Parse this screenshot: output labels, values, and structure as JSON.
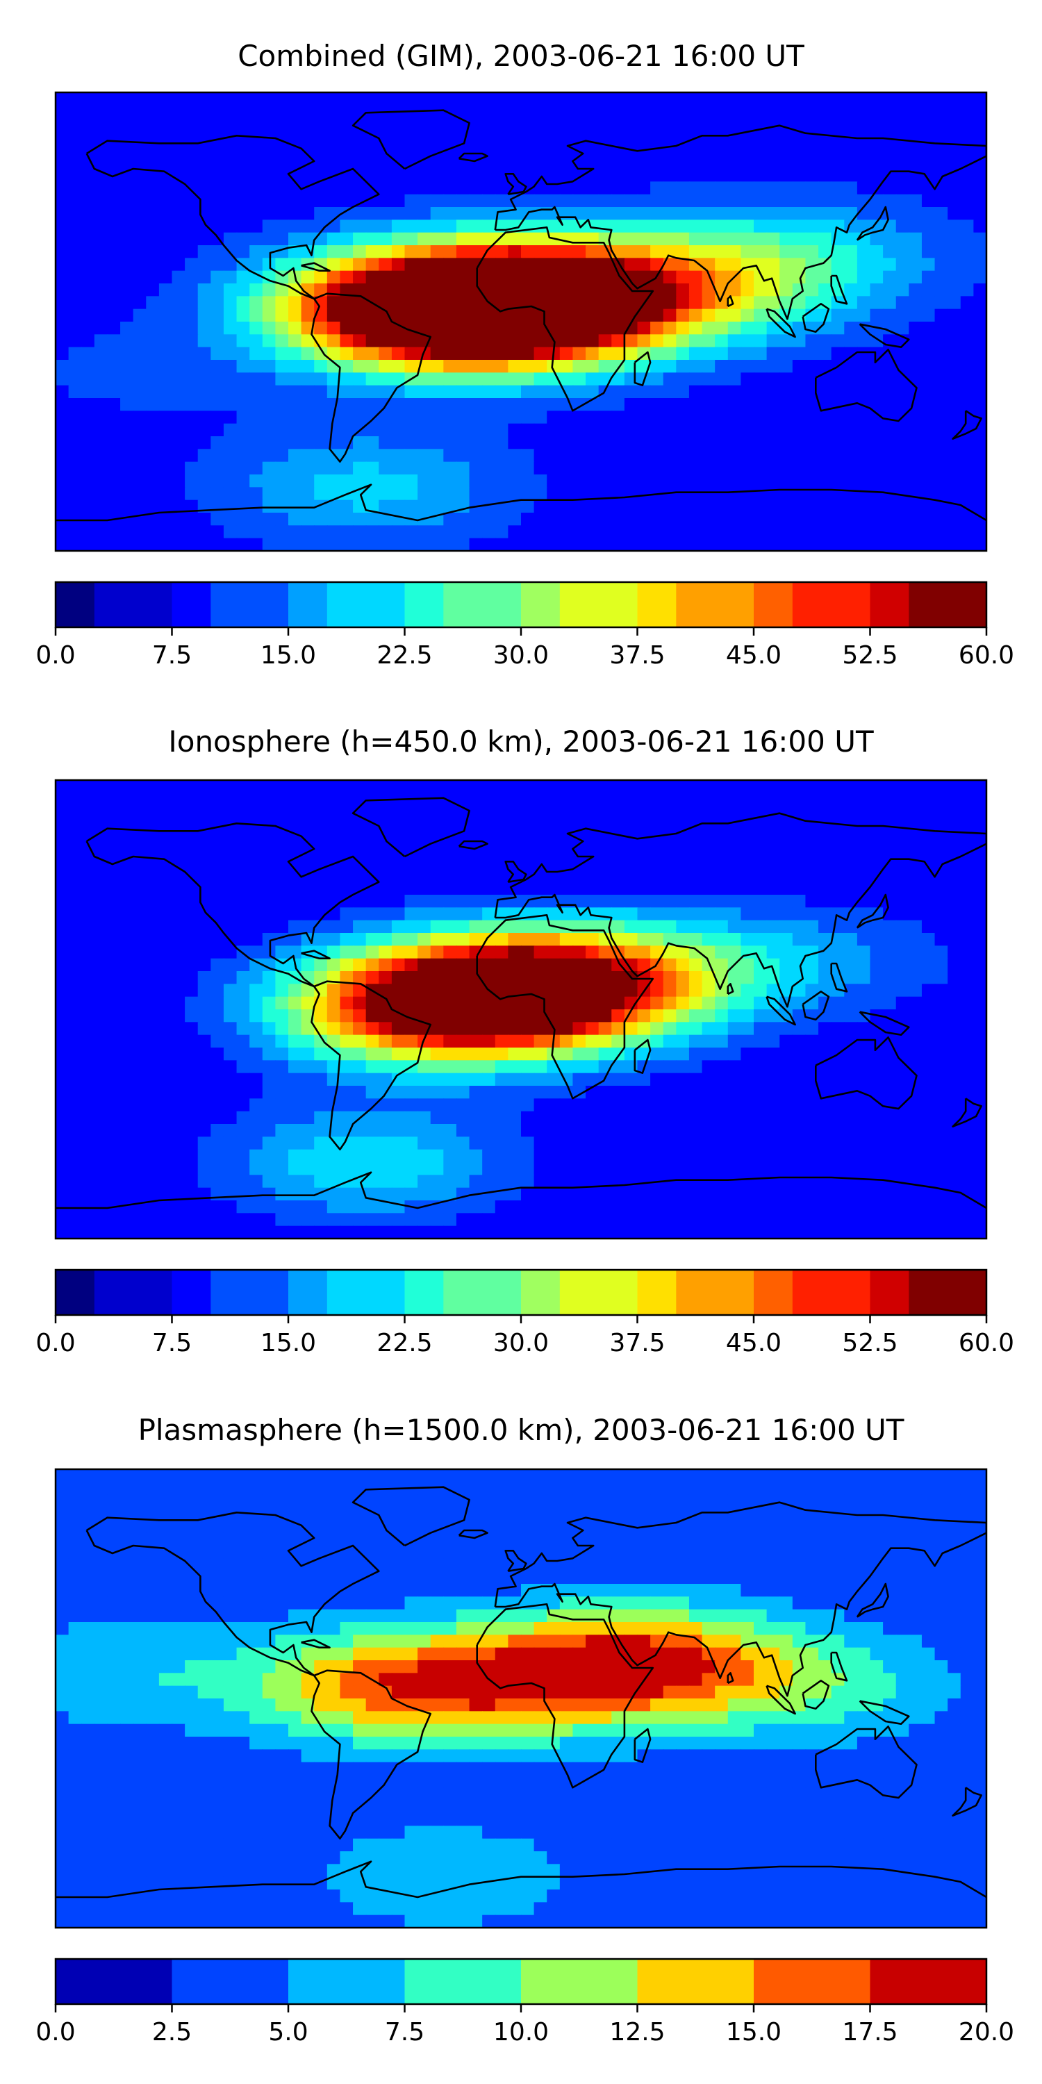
{
  "chart_data": [
    {
      "type": "heatmap",
      "title": "Combined (GIM), 2003-06-21 16:00 UT",
      "colorbar": {
        "min": 0.0,
        "max": 60.0,
        "levels": 24,
        "ticks": [
          "0.0",
          "7.5",
          "15.0",
          "22.5",
          "30.0",
          "37.5",
          "45.0",
          "52.5",
          "60.0"
        ]
      },
      "blobs": [
        {
          "lon": -45,
          "lat": 5,
          "value": 50
        },
        {
          "lon": 10,
          "lat": 8,
          "value": 56
        },
        {
          "lon": -15,
          "lat": 5,
          "value": 45
        },
        {
          "lon": 65,
          "lat": 15,
          "value": 28
        },
        {
          "lon": 110,
          "lat": 25,
          "value": 20
        },
        {
          "lon": -60,
          "lat": -65,
          "value": 20
        },
        {
          "lon": -150,
          "lat": -20,
          "value": 12
        }
      ],
      "background": 9
    },
    {
      "type": "heatmap",
      "title": "Ionosphere  (h=450.0 km), 2003-06-21 16:00 UT",
      "colorbar": {
        "min": 0.0,
        "max": 60.0,
        "levels": 24,
        "ticks": [
          "0.0",
          "7.5",
          "15.0",
          "22.5",
          "30.0",
          "37.5",
          "45.0",
          "52.5",
          "60.0"
        ]
      },
      "blobs": [
        {
          "lon": -45,
          "lat": 0,
          "value": 36
        },
        {
          "lon": 10,
          "lat": 8,
          "value": 45
        },
        {
          "lon": -15,
          "lat": 5,
          "value": 40
        },
        {
          "lon": 55,
          "lat": 15,
          "value": 22
        },
        {
          "lon": -60,
          "lat": -60,
          "value": 22
        },
        {
          "lon": 120,
          "lat": 20,
          "value": 14
        }
      ],
      "background": 8
    },
    {
      "type": "heatmap",
      "title": "Plasmasphere (h=1500.0 km), 2003-06-21 16:00 UT",
      "colorbar": {
        "min": 0.0,
        "max": 20.0,
        "levels": 8,
        "ticks": [
          "0.0",
          "2.5",
          "5.0",
          "7.5",
          "10.0",
          "12.5",
          "15.0",
          "17.5",
          "20.0"
        ]
      },
      "blobs": [
        {
          "lon": -55,
          "lat": 5,
          "value": 14
        },
        {
          "lon": 45,
          "lat": 15,
          "value": 16
        },
        {
          "lon": 0,
          "lat": 5,
          "value": 11
        },
        {
          "lon": 110,
          "lat": 5,
          "value": 9
        },
        {
          "lon": -160,
          "lat": 10,
          "value": 7
        },
        {
          "lon": -30,
          "lat": -70,
          "value": 7
        }
      ],
      "background": 3
    }
  ],
  "colormap": [
    "#000080",
    "#0000cd",
    "#0000ff",
    "#0050ff",
    "#00a0ff",
    "#00d8ff",
    "#20ffd8",
    "#60ffa0",
    "#a0ff60",
    "#e0ff20",
    "#ffe000",
    "#ffa000",
    "#ff6000",
    "#ff2000",
    "#d00000",
    "#800000"
  ],
  "colormap_plasma": [
    "#0000b4",
    "#0044ff",
    "#00b8ff",
    "#32ffc4",
    "#9cff5a",
    "#ffd000",
    "#ff5a00",
    "#c80000"
  ]
}
